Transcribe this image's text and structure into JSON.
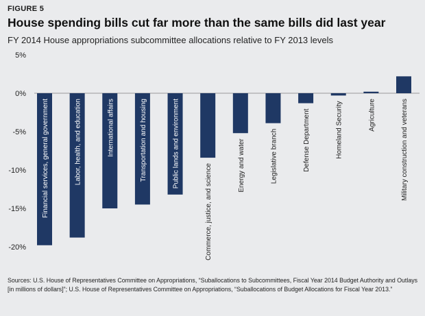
{
  "header": {
    "figure_label": "FIGURE 5",
    "title": "House spending bills cut far more than the same bills did last year",
    "subtitle": "FY 2014 House appropriations subcommittee allocations relative to FY 2013 levels"
  },
  "colors": {
    "background": "#eaebed",
    "bar": "#1f3864",
    "bar_label_inside": "#ffffff",
    "bar_label_outside": "#222222",
    "zero_line": "#9a9a9a"
  },
  "chart_data": {
    "type": "bar",
    "title": "House spending bills cut far more than the same bills did last year",
    "xlabel": "",
    "ylabel": "",
    "ylim": [
      -20,
      5
    ],
    "yticks": [
      5,
      0,
      -5,
      -10,
      -15,
      -20
    ],
    "ytick_labels": [
      "5%",
      "0%",
      "-5%",
      "-10%",
      "-15%",
      "-20%"
    ],
    "grid": false,
    "categories": [
      "Financial services, general government",
      "Labor, health, and education",
      "International affairs",
      "Transportation and housing",
      "Public lands and environment",
      "Commerce, justice, and science",
      "Energy and water",
      "Legislative branch",
      "Defense Department",
      "Homeland Security",
      "Agriculture",
      "Military construction and veterans"
    ],
    "values": [
      -19.8,
      -18.8,
      -15.0,
      -14.5,
      -13.2,
      -8.4,
      -5.2,
      -3.9,
      -1.3,
      -0.3,
      0.2,
      2.2
    ],
    "label_inside": [
      true,
      true,
      true,
      true,
      true,
      false,
      false,
      false,
      false,
      false,
      false,
      false
    ]
  },
  "sources": "Sources: U.S. House of Representatives Committee on Appropriations, “Suballocations to Subcommittees, Fiscal Year 2014 Budget Authority and Outlays [in millions of dollars]”; U.S. House of Representatives Committee on Appropriations, “Suballocations of Budget Allocations for Fiscal Year 2013.”"
}
